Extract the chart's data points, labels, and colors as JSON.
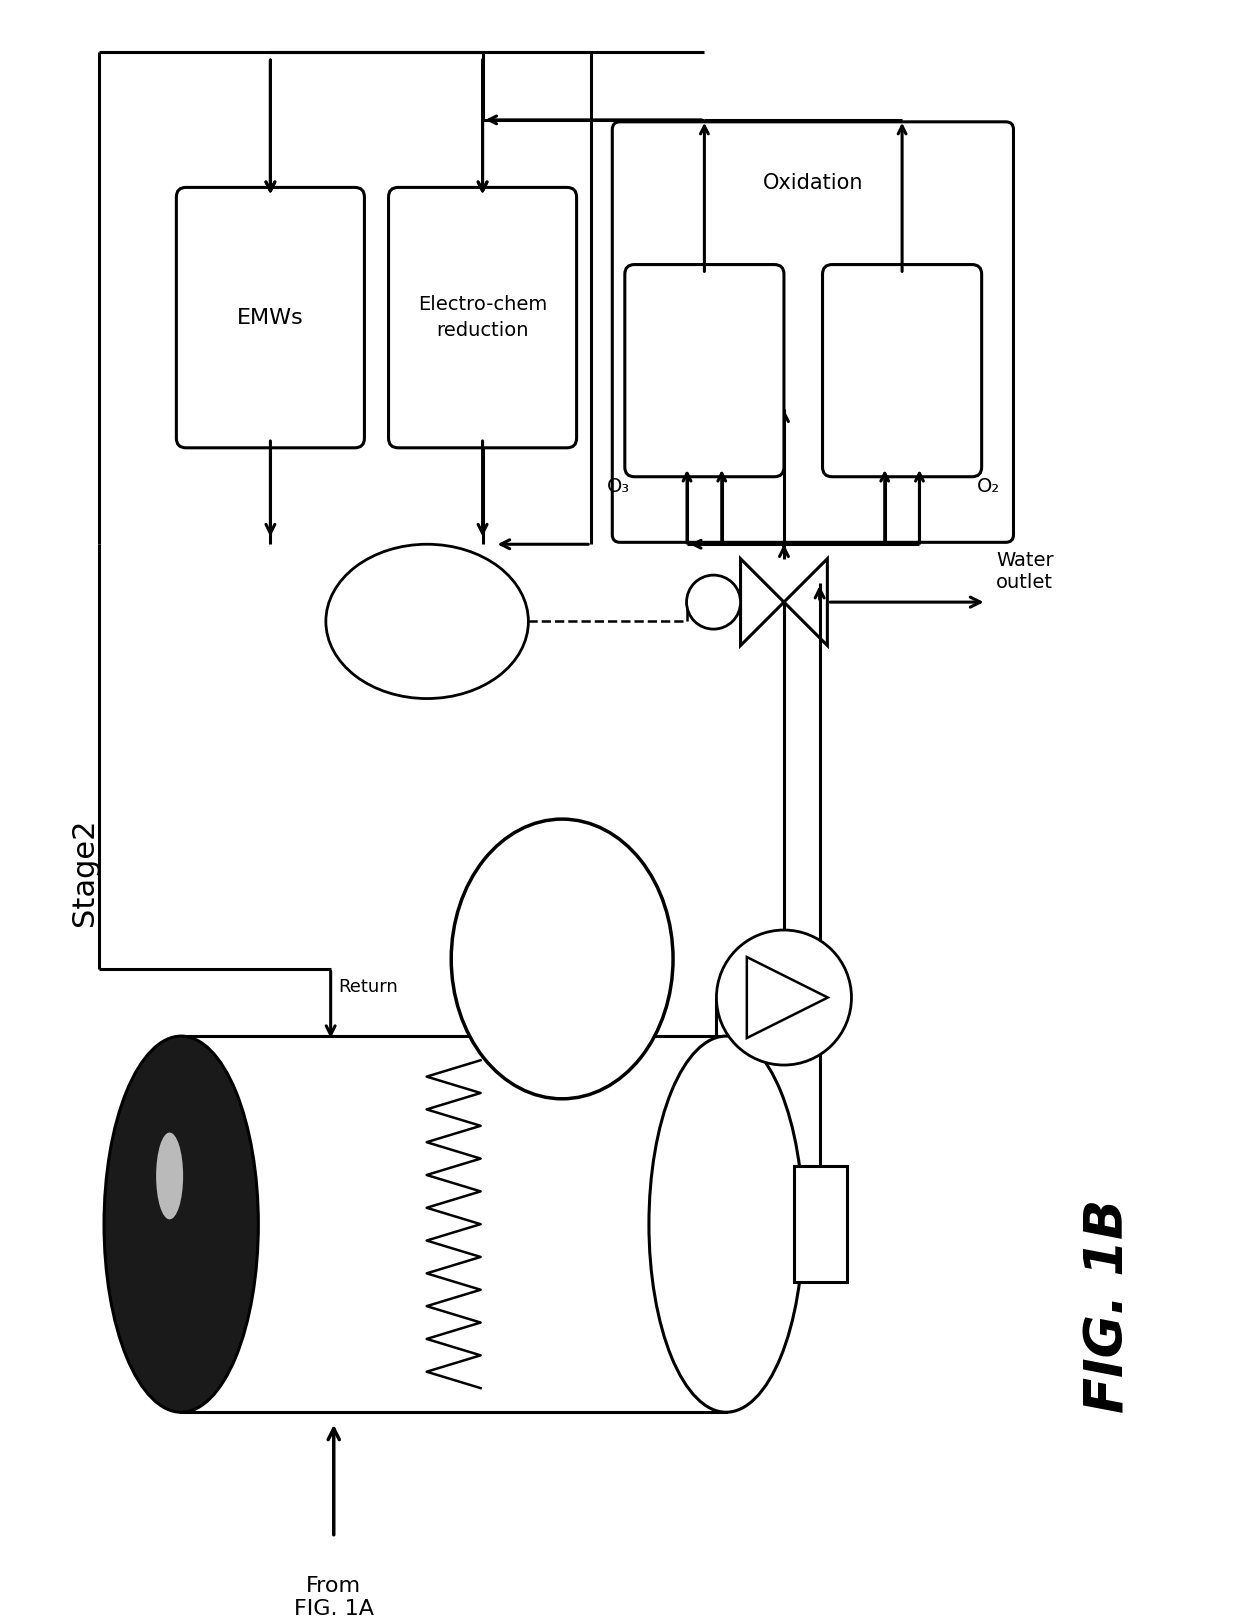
{
  "title": "FIG. 1B",
  "stage_label": "Stage2",
  "background_color": "#ffffff",
  "figsize": [
    12.4,
    16.22
  ],
  "dpi": 100,
  "lw": 2.2,
  "annotations": {
    "from_fig1a": "From\nFIG. 1A",
    "return": "Return",
    "water_outlet": "Water\noutlet",
    "o3": "O₃",
    "o2": "O₂"
  }
}
